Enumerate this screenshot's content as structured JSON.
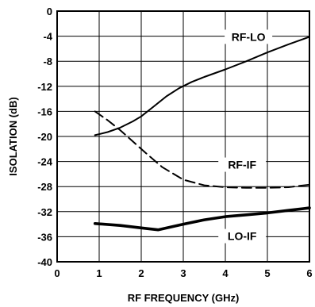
{
  "chart_data": {
    "type": "line",
    "xlabel": "RF FREQUENCY (GHz)",
    "ylabel": "ISOLATION (dB)",
    "xlim": [
      0,
      6
    ],
    "ylim": [
      -40,
      0
    ],
    "xticks": [
      0,
      1,
      2,
      3,
      4,
      5,
      6
    ],
    "yticks": [
      0,
      -4,
      -8,
      -12,
      -16,
      -20,
      -24,
      -28,
      -32,
      -36,
      -40
    ],
    "grid": true,
    "series": [
      {
        "name": "RF-LO",
        "style": "solid",
        "x": [
          0.9,
          1.2,
          1.5,
          1.8,
          2.0,
          2.3,
          2.6,
          2.9,
          3.2,
          3.5,
          4.0,
          4.5,
          5.0,
          5.5,
          6.0
        ],
        "y": [
          -19.8,
          -19.3,
          -18.6,
          -17.6,
          -16.8,
          -15.2,
          -13.6,
          -12.3,
          -11.3,
          -10.5,
          -9.3,
          -8.0,
          -6.6,
          -5.3,
          -4.1
        ]
      },
      {
        "name": "RF-IF",
        "style": "dashed",
        "x": [
          0.9,
          1.2,
          1.5,
          1.8,
          2.1,
          2.5,
          3.0,
          3.5,
          4.0,
          4.5,
          5.0,
          5.5,
          6.0
        ],
        "y": [
          -16.0,
          -17.4,
          -19.0,
          -20.8,
          -22.6,
          -24.9,
          -26.9,
          -27.8,
          -28.1,
          -28.2,
          -28.2,
          -28.1,
          -27.7
        ]
      },
      {
        "name": "LO-IF",
        "style": "solid-thick",
        "x": [
          0.9,
          1.5,
          2.0,
          2.4,
          3.0,
          3.5,
          4.0,
          4.5,
          5.0,
          5.5,
          6.0
        ],
        "y": [
          -33.9,
          -34.2,
          -34.6,
          -34.9,
          -34.0,
          -33.3,
          -32.8,
          -32.5,
          -32.2,
          -31.8,
          -31.4
        ]
      }
    ]
  }
}
